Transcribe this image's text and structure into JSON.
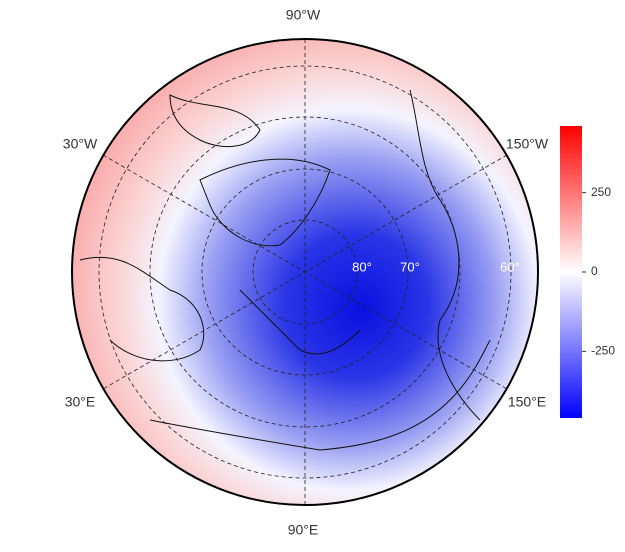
{
  "map": {
    "longitude_labels": [
      "90°W",
      "30°W",
      "150°W",
      "30°E",
      "150°E",
      "90°E"
    ],
    "latitude_labels": [
      "80°",
      "70°",
      "60°"
    ],
    "colorbar": {
      "lim": [
        -460,
        460
      ],
      "ticks": [
        250,
        0,
        -250
      ],
      "colors": [
        "#0000ff",
        "#ffffff",
        "#ff0000"
      ]
    }
  }
}
